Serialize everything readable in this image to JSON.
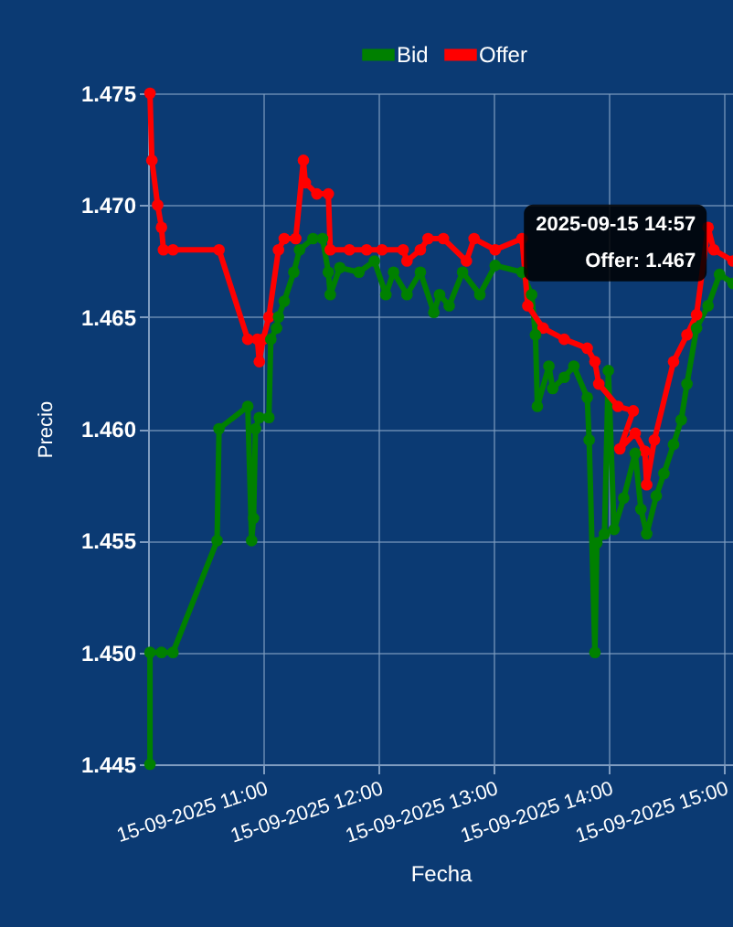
{
  "chart_data": {
    "type": "line",
    "xlabel": "Fecha",
    "ylabel": "Precio",
    "xlim": [
      "2025-09-15T10:00",
      "2025-09-15T15:05"
    ],
    "ylim": [
      1.445,
      1.475
    ],
    "xticks": [
      {
        "value": "2025-09-15T11:00",
        "label": "15-09-2025 11:00"
      },
      {
        "value": "2025-09-15T12:00",
        "label": "15-09-2025 12:00"
      },
      {
        "value": "2025-09-15T13:00",
        "label": "15-09-2025 13:00"
      },
      {
        "value": "2025-09-15T14:00",
        "label": "15-09-2025 14:00"
      },
      {
        "value": "2025-09-15T15:00",
        "label": "15-09-2025 15:00"
      }
    ],
    "yticks": [
      1.445,
      {
        "value": 1.45,
        "label": "1.450"
      },
      1.455,
      {
        "value": 1.46,
        "label": "1.460"
      },
      1.465,
      {
        "value": 1.47,
        "label": "1.470"
      },
      1.475
    ],
    "grid": true,
    "legend": "top",
    "marker": "circle",
    "line_style": "solid",
    "annotations": [
      {
        "text": "2025-09-15 14:57\nOffer: 1.467",
        "x": "2025-09-15T14:57",
        "y": 1.467
      }
    ],
    "series": [
      {
        "name": "Bid",
        "color": "#008000",
        "x": [
          "2025-09-15T10:01",
          "2025-09-15T10:01",
          "2025-09-15T10:07",
          "2025-09-15T10:13",
          "2025-09-15T10:36",
          "2025-09-15T10:37",
          "2025-09-15T10:52",
          "2025-09-15T10:54",
          "2025-09-15T10:55",
          "2025-09-15T10:56",
          "2025-09-15T10:58",
          "2025-09-15T11:03",
          "2025-09-15T11:04",
          "2025-09-15T11:07",
          "2025-09-15T11:08",
          "2025-09-15T11:11",
          "2025-09-15T11:16",
          "2025-09-15T11:19",
          "2025-09-15T11:26",
          "2025-09-15T11:31",
          "2025-09-15T11:34",
          "2025-09-15T11:35",
          "2025-09-15T11:40",
          "2025-09-15T11:50",
          "2025-09-15T11:58",
          "2025-09-15T12:04",
          "2025-09-15T12:08",
          "2025-09-15T12:15",
          "2025-09-15T12:22",
          "2025-09-15T12:29",
          "2025-09-15T12:32",
          "2025-09-15T12:37",
          "2025-09-15T12:44",
          "2025-09-15T12:53",
          "2025-09-15T13:01",
          "2025-09-15T13:15",
          "2025-09-15T13:20",
          "2025-09-15T13:22",
          "2025-09-15T13:23",
          "2025-09-15T13:29",
          "2025-09-15T13:31",
          "2025-09-15T13:37",
          "2025-09-15T13:42",
          "2025-09-15T13:49",
          "2025-09-15T13:50",
          "2025-09-15T13:53",
          "2025-09-15T13:54",
          "2025-09-15T13:58",
          "2025-09-15T14:00",
          "2025-09-15T14:03",
          "2025-09-15T14:08",
          "2025-09-15T14:14",
          "2025-09-15T14:17",
          "2025-09-15T14:20",
          "2025-09-15T14:25",
          "2025-09-15T14:29",
          "2025-09-15T14:34",
          "2025-09-15T14:38",
          "2025-09-15T14:41",
          "2025-09-15T14:46",
          "2025-09-15T14:52",
          "2025-09-15T14:58",
          "2025-09-15T15:05"
        ],
        "values": [
          1.445,
          1.45,
          1.45,
          1.45,
          1.455,
          1.46,
          1.461,
          1.455,
          1.456,
          1.46,
          1.4605,
          1.4605,
          1.464,
          1.4645,
          1.465,
          1.4657,
          1.467,
          1.468,
          1.4685,
          1.4685,
          1.467,
          1.466,
          1.4672,
          1.467,
          1.4675,
          1.466,
          1.467,
          1.466,
          1.467,
          1.4652,
          1.466,
          1.4655,
          1.467,
          1.466,
          1.4673,
          1.467,
          1.466,
          1.4642,
          1.461,
          1.4628,
          1.4618,
          1.4623,
          1.4628,
          1.4614,
          1.4595,
          1.45,
          1.4549,
          1.4553,
          1.4626,
          1.4555,
          1.4569,
          1.4589,
          1.4564,
          1.4553,
          1.457,
          1.458,
          1.4593,
          1.4604,
          1.462,
          1.4645,
          1.4655,
          1.4669,
          1.4665
        ]
      },
      {
        "name": "Offer",
        "color": "#ff0000",
        "x": [
          "2025-09-15T10:01",
          "2025-09-15T10:02",
          "2025-09-15T10:05",
          "2025-09-15T10:07",
          "2025-09-15T10:08",
          "2025-09-15T10:13",
          "2025-09-15T10:37",
          "2025-09-15T10:52",
          "2025-09-15T10:57",
          "2025-09-15T10:58",
          "2025-09-15T11:00",
          "2025-09-15T11:03",
          "2025-09-15T11:08",
          "2025-09-15T11:11",
          "2025-09-15T11:17",
          "2025-09-15T11:21",
          "2025-09-15T11:22",
          "2025-09-15T11:28",
          "2025-09-15T11:34",
          "2025-09-15T11:35",
          "2025-09-15T11:45",
          "2025-09-15T11:54",
          "2025-09-15T12:02",
          "2025-09-15T12:13",
          "2025-09-15T12:15",
          "2025-09-15T12:22",
          "2025-09-15T12:26",
          "2025-09-15T12:34",
          "2025-09-15T12:46",
          "2025-09-15T12:50",
          "2025-09-15T13:01",
          "2025-09-15T13:15",
          "2025-09-15T13:18",
          "2025-09-15T13:26",
          "2025-09-15T13:37",
          "2025-09-15T13:49",
          "2025-09-15T13:53",
          "2025-09-15T13:55",
          "2025-09-15T14:05",
          "2025-09-15T14:13",
          "2025-09-15T14:06",
          "2025-09-15T14:14",
          "2025-09-15T14:19",
          "2025-09-15T14:20",
          "2025-09-15T14:24",
          "2025-09-15T14:34",
          "2025-09-15T14:41",
          "2025-09-15T14:46",
          "2025-09-15T14:52",
          "2025-09-15T14:55",
          "2025-09-15T15:05"
        ],
        "values": [
          1.475,
          1.472,
          1.47,
          1.469,
          1.468,
          1.468,
          1.468,
          1.464,
          1.464,
          1.463,
          1.464,
          1.465,
          1.468,
          1.4685,
          1.4685,
          1.472,
          1.471,
          1.4705,
          1.4705,
          1.468,
          1.468,
          1.468,
          1.468,
          1.468,
          1.4675,
          1.468,
          1.4685,
          1.4685,
          1.4675,
          1.4685,
          1.468,
          1.4685,
          1.4655,
          1.4645,
          1.464,
          1.4636,
          1.463,
          1.462,
          1.461,
          1.4608,
          1.4591,
          1.4598,
          1.459,
          1.4575,
          1.4595,
          1.463,
          1.4642,
          1.4651,
          1.469,
          1.468,
          1.4675
        ]
      }
    ]
  }
}
